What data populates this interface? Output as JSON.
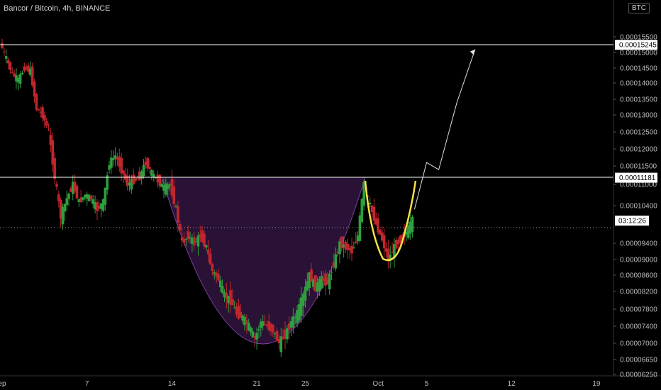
{
  "title": "Bancor / Bitcoin, 4h, BINANCE",
  "currency_badge": "BTC",
  "chart_data": {
    "type": "candlestick",
    "title": "Bancor / Bitcoin, 4h, BINANCE",
    "currency": "BTC",
    "y_axis_labels": [
      "0.00015500",
      "0.00015000",
      "0.00014500",
      "0.00014000",
      "0.00013500",
      "0.00013000",
      "0.00012500",
      "0.00012000",
      "0.00011500",
      "0.00011000",
      "0.00010400",
      "0.00009400",
      "0.00009000",
      "0.00008600",
      "0.00008200",
      "0.00007800",
      "0.00007400",
      "0.00007000",
      "0.00006650",
      "0.00006250"
    ],
    "x_axis_labels": [
      {
        "label": "ep",
        "day": 0
      },
      {
        "label": "7",
        "day": 7
      },
      {
        "label": "14",
        "day": 14
      },
      {
        "label": "21",
        "day": 21
      },
      {
        "label": "25",
        "day": 25
      },
      {
        "label": "Oct",
        "day": 31
      },
      {
        "label": "5",
        "day": 35
      },
      {
        "label": "12",
        "day": 42
      },
      {
        "label": "19",
        "day": 49
      }
    ],
    "horizontal_lines": [
      {
        "value": 0.00015245,
        "label": "0.00015245",
        "color": "#ffffff"
      },
      {
        "value": 0.00011181,
        "label": "0.00011181",
        "color": "#ffffff"
      }
    ],
    "current_price_line": {
      "value": 0.0001,
      "countdown": "03:12:26",
      "style": "dotted"
    },
    "candles_close_path": [
      [
        0,
        0.000153
      ],
      [
        0.5,
        0.000148
      ],
      [
        1,
        0.000143
      ],
      [
        1.5,
        0.000141
      ],
      [
        2,
        0.000145
      ],
      [
        2.5,
        0.000144
      ],
      [
        3,
        0.000132
      ],
      [
        3.5,
        0.00013
      ],
      [
        4,
        0.000125
      ],
      [
        4.5,
        0.000112
      ],
      [
        5,
        0.000101
      ],
      [
        5.5,
        0.000106
      ],
      [
        6,
        0.00011
      ],
      [
        6.5,
        0.000105
      ],
      [
        7,
        0.000107
      ],
      [
        7.5,
        0.000106
      ],
      [
        8,
        0.000103
      ],
      [
        8.5,
        0.000105
      ],
      [
        9,
        0.000116
      ],
      [
        9.5,
        0.000118
      ],
      [
        10,
        0.000114
      ],
      [
        10.5,
        0.00011
      ],
      [
        11,
        0.000111
      ],
      [
        11.5,
        0.000112
      ],
      [
        12,
        0.000116
      ],
      [
        12.5,
        0.000113
      ],
      [
        13,
        0.000111
      ],
      [
        13.5,
        0.000109
      ],
      [
        14,
        0.00011
      ],
      [
        14.5,
        0.000103
      ],
      [
        15,
        9.4e-05
      ],
      [
        15.5,
        9.6e-05
      ],
      [
        16,
        9.4e-05
      ],
      [
        16.5,
        9.6e-05
      ],
      [
        17,
        9.3e-05
      ],
      [
        17.5,
        8.7e-05
      ],
      [
        18,
        8.5e-05
      ],
      [
        18.5,
        8.1e-05
      ],
      [
        19,
        8e-05
      ],
      [
        19.5,
        7.7e-05
      ],
      [
        20,
        7.6e-05
      ],
      [
        20.5,
        7.4e-05
      ],
      [
        21,
        7.1e-05
      ],
      [
        21.5,
        7.5e-05
      ],
      [
        22,
        7.4e-05
      ],
      [
        22.5,
        7.3e-05
      ],
      [
        23,
        7e-05
      ],
      [
        23.5,
        7.2e-05
      ],
      [
        24,
        7.5e-05
      ],
      [
        24.5,
        7.7e-05
      ],
      [
        25,
        8.1e-05
      ],
      [
        25.5,
        8.6e-05
      ],
      [
        26,
        8.3e-05
      ],
      [
        26.5,
        8.5e-05
      ],
      [
        27,
        8.4e-05
      ],
      [
        27.5,
        8.9e-05
      ],
      [
        28,
        9.4e-05
      ],
      [
        28.5,
        9.3e-05
      ],
      [
        29,
        9.2e-05
      ],
      [
        29.5,
        9.6e-05
      ],
      [
        30,
        0.00011
      ],
      [
        30.5,
        0.000104
      ],
      [
        31,
        9.9e-05
      ],
      [
        31.5,
        9.5e-05
      ],
      [
        32,
        9e-05
      ],
      [
        32.5,
        9.3e-05
      ],
      [
        33,
        9.5e-05
      ],
      [
        33.5,
        9.7e-05
      ],
      [
        34,
        0.0001
      ]
    ],
    "projection_arrow": [
      [
        34,
        0.000103
      ],
      [
        35,
        0.000116
      ],
      [
        36,
        0.000114
      ],
      [
        37.5,
        0.000134
      ],
      [
        39,
        0.000151
      ]
    ]
  }
}
